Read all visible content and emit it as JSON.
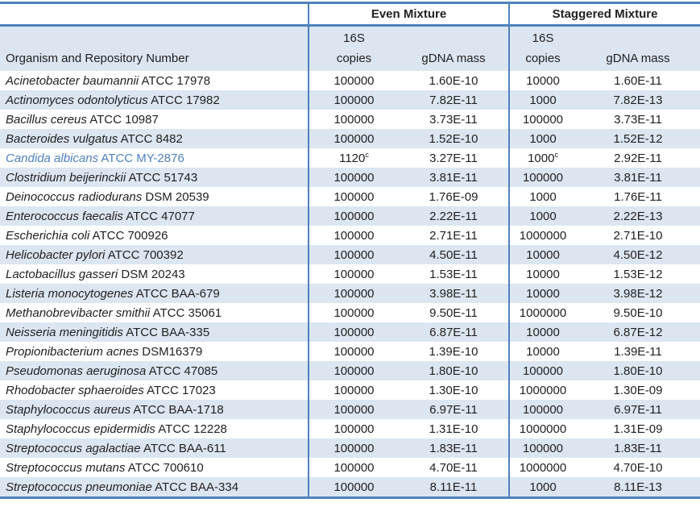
{
  "table": {
    "col_headers": {
      "organism": "Organism and Repository Number",
      "even_group": "Even Mixture",
      "staggered_group": "Staggered Mixture",
      "copies_line1": "16S",
      "copies_line2": "copies",
      "mass": "gDNA mass"
    },
    "style": {
      "border_blue": "#4f81bd",
      "stripe_blue": "#dce6f1",
      "highlight_text_blue": "#4f81bd"
    },
    "rows": [
      {
        "name": "Acinetobacter baumannii",
        "id": "ATCC 17978",
        "even_copies": "100000",
        "even_mass": "1.60E-10",
        "stag_copies": "10000",
        "stag_mass": "1.60E-11",
        "highlight": false
      },
      {
        "name": "Actinomyces odontolyticus",
        "id": "ATCC 17982",
        "even_copies": "100000",
        "even_mass": "7.82E-11",
        "stag_copies": "1000",
        "stag_mass": "7.82E-13",
        "highlight": false
      },
      {
        "name": "Bacillus cereus",
        "id": "ATCC 10987",
        "even_copies": "100000",
        "even_mass": "3.73E-11",
        "stag_copies": "100000",
        "stag_mass": "3.73E-11",
        "highlight": false
      },
      {
        "name": "Bacteroides vulgatus",
        "id": "ATCC 8482",
        "even_copies": "100000",
        "even_mass": "1.52E-10",
        "stag_copies": "1000",
        "stag_mass": "1.52E-12",
        "highlight": false
      },
      {
        "name": "Candida albicans",
        "id": "ATCC MY-2876",
        "even_copies": "1120",
        "even_copies_sup": "c",
        "even_mass": "3.27E-11",
        "stag_copies": "1000",
        "stag_copies_sup": "c",
        "stag_mass": "2.92E-11",
        "highlight": true
      },
      {
        "name": "Clostridium beijerinckii",
        "id": "ATCC 51743",
        "even_copies": "100000",
        "even_mass": "3.81E-11",
        "stag_copies": "100000",
        "stag_mass": "3.81E-11",
        "highlight": false
      },
      {
        "name": "Deinococcus radiodurans",
        "id": "DSM 20539",
        "even_copies": "100000",
        "even_mass": "1.76E-09",
        "stag_copies": "1000",
        "stag_mass": "1.76E-11",
        "highlight": false
      },
      {
        "name": "Enterococcus faecalis",
        "id": "ATCC 47077",
        "even_copies": "100000",
        "even_mass": "2.22E-11",
        "stag_copies": "1000",
        "stag_mass": "2.22E-13",
        "highlight": false
      },
      {
        "name": "Escherichia coli",
        "id": "ATCC 700926",
        "even_copies": "100000",
        "even_mass": "2.71E-11",
        "stag_copies": "1000000",
        "stag_mass": "2.71E-10",
        "highlight": false
      },
      {
        "name": "Helicobacter pylori",
        "id": "ATCC 700392",
        "even_copies": "100000",
        "even_mass": "4.50E-11",
        "stag_copies": "10000",
        "stag_mass": "4.50E-12",
        "highlight": false
      },
      {
        "name": "Lactobacillus gasseri",
        "id": "DSM 20243",
        "even_copies": "100000",
        "even_mass": "1.53E-11",
        "stag_copies": "10000",
        "stag_mass": "1.53E-12",
        "highlight": false
      },
      {
        "name": "Listeria monocytogenes",
        "id": "ATCC BAA-679",
        "even_copies": "100000",
        "even_mass": "3.98E-11",
        "stag_copies": "10000",
        "stag_mass": "3.98E-12",
        "highlight": false
      },
      {
        "name": "Methanobrevibacter smithii",
        "id": "ATCC 35061",
        "even_copies": "100000",
        "even_mass": "9.50E-11",
        "stag_copies": "1000000",
        "stag_mass": "9.50E-10",
        "highlight": false
      },
      {
        "name": "Neisseria meningitidis",
        "id": "ATCC BAA-335",
        "even_copies": "100000",
        "even_mass": "6.87E-11",
        "stag_copies": "10000",
        "stag_mass": "6.87E-12",
        "highlight": false
      },
      {
        "name": "Propionibacterium acnes",
        "id": "DSM16379",
        "even_copies": "100000",
        "even_mass": "1.39E-10",
        "stag_copies": "10000",
        "stag_mass": "1.39E-11",
        "highlight": false
      },
      {
        "name": "Pseudomonas aeruginosa",
        "id": "ATCC 47085",
        "even_copies": "100000",
        "even_mass": "1.80E-10",
        "stag_copies": "100000",
        "stag_mass": "1.80E-10",
        "highlight": false
      },
      {
        "name": "Rhodobacter sphaeroides",
        "id": "ATCC 17023",
        "even_copies": "100000",
        "even_mass": "1.30E-10",
        "stag_copies": "1000000",
        "stag_mass": "1.30E-09",
        "highlight": false
      },
      {
        "name": "Staphylococcus aureus",
        "id": "ATCC BAA-1718",
        "even_copies": "100000",
        "even_mass": "6.97E-11",
        "stag_copies": "100000",
        "stag_mass": "6.97E-11",
        "highlight": false
      },
      {
        "name": "Staphylococcus epidermidis",
        "id": "ATCC 12228",
        "even_copies": "100000",
        "even_mass": "1.31E-10",
        "stag_copies": "1000000",
        "stag_mass": "1.31E-09",
        "highlight": false
      },
      {
        "name": "Streptococcus agalactiae",
        "id": "ATCC BAA-611",
        "even_copies": "100000",
        "even_mass": "1.83E-11",
        "stag_copies": "100000",
        "stag_mass": "1.83E-11",
        "highlight": false
      },
      {
        "name": "Streptococcus mutans",
        "id": "ATCC 700610",
        "even_copies": "100000",
        "even_mass": "4.70E-11",
        "stag_copies": "1000000",
        "stag_mass": "4.70E-10",
        "highlight": false
      },
      {
        "name": "Streptococcus pneumoniae",
        "id": "ATCC BAA-334",
        "even_copies": "100000",
        "even_mass": "8.11E-11",
        "stag_copies": "1000",
        "stag_mass": "8.11E-13",
        "highlight": false
      }
    ]
  }
}
